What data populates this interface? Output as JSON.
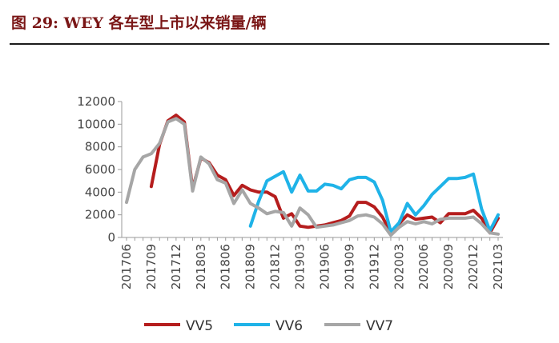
{
  "figure": {
    "title": "图 29:  WEY 各车型上市以来销量/辆"
  },
  "colors": {
    "VV5": "#b51d1d",
    "VV6": "#1fb3e8",
    "VV7": "#a6a6a6",
    "axis": "#9a9a9a",
    "title": "#7a1616"
  },
  "chart_data": {
    "type": "line",
    "title": "图 29:  WEY 各车型上市以来销量/辆",
    "xlabel": "",
    "ylabel": "",
    "ylim": [
      0,
      12000
    ],
    "yticks": [
      0,
      2000,
      4000,
      6000,
      8000,
      10000,
      12000
    ],
    "grid": false,
    "legend": "bottom",
    "categories": [
      "201706",
      "201707",
      "201708",
      "201709",
      "201710",
      "201711",
      "201712",
      "201801",
      "201802",
      "201803",
      "201804",
      "201805",
      "201806",
      "201807",
      "201808",
      "201809",
      "201810",
      "201811",
      "201812",
      "201901",
      "201902",
      "201903",
      "201904",
      "201905",
      "201906",
      "201907",
      "201908",
      "201909",
      "201910",
      "201911",
      "201912",
      "202001",
      "202002",
      "202003",
      "202004",
      "202005",
      "202006",
      "202007",
      "202008",
      "202009",
      "202010",
      "202011",
      "202012",
      "202101",
      "202102",
      "202103"
    ],
    "tick_labels": [
      "201706",
      "201709",
      "201712",
      "201803",
      "201806",
      "201809",
      "201812",
      "201903",
      "201906",
      "201909",
      "201912",
      "202003",
      "202006",
      "202009",
      "202012",
      "202103"
    ],
    "series": [
      {
        "name": "VV5",
        "values": [
          null,
          null,
          null,
          4500,
          8200,
          10300,
          10800,
          10200,
          4300,
          7000,
          6600,
          5500,
          5100,
          3700,
          4600,
          4200,
          4000,
          4000,
          3600,
          1700,
          2100,
          1000,
          900,
          1000,
          1100,
          1300,
          1500,
          1900,
          3100,
          3100,
          2700,
          1800,
          400,
          1200,
          2000,
          1600,
          1700,
          1800,
          1300,
          2100,
          2100,
          2100,
          2400,
          1700,
          400,
          1700
        ]
      },
      {
        "name": "VV6",
        "values": [
          null,
          null,
          null,
          null,
          null,
          null,
          null,
          null,
          null,
          null,
          null,
          null,
          null,
          null,
          null,
          1000,
          3200,
          5000,
          5400,
          5800,
          4000,
          5500,
          4100,
          4100,
          4700,
          4600,
          4300,
          5100,
          5300,
          5300,
          4900,
          3300,
          500,
          1300,
          3000,
          2000,
          2800,
          3800,
          4500,
          5200,
          5200,
          5300,
          5600,
          2500,
          600,
          2000
        ]
      },
      {
        "name": "VV7",
        "values": [
          3100,
          6000,
          7100,
          7400,
          8300,
          10200,
          10500,
          10000,
          4100,
          7100,
          6500,
          5100,
          4800,
          3000,
          4200,
          3000,
          2600,
          2100,
          2300,
          2200,
          1000,
          2600,
          2000,
          900,
          1000,
          1100,
          1300,
          1500,
          1900,
          2000,
          1800,
          1200,
          200,
          900,
          1400,
          1200,
          1400,
          1200,
          1600,
          1700,
          1700,
          1700,
          1800,
          1200,
          400,
          300
        ]
      }
    ]
  }
}
